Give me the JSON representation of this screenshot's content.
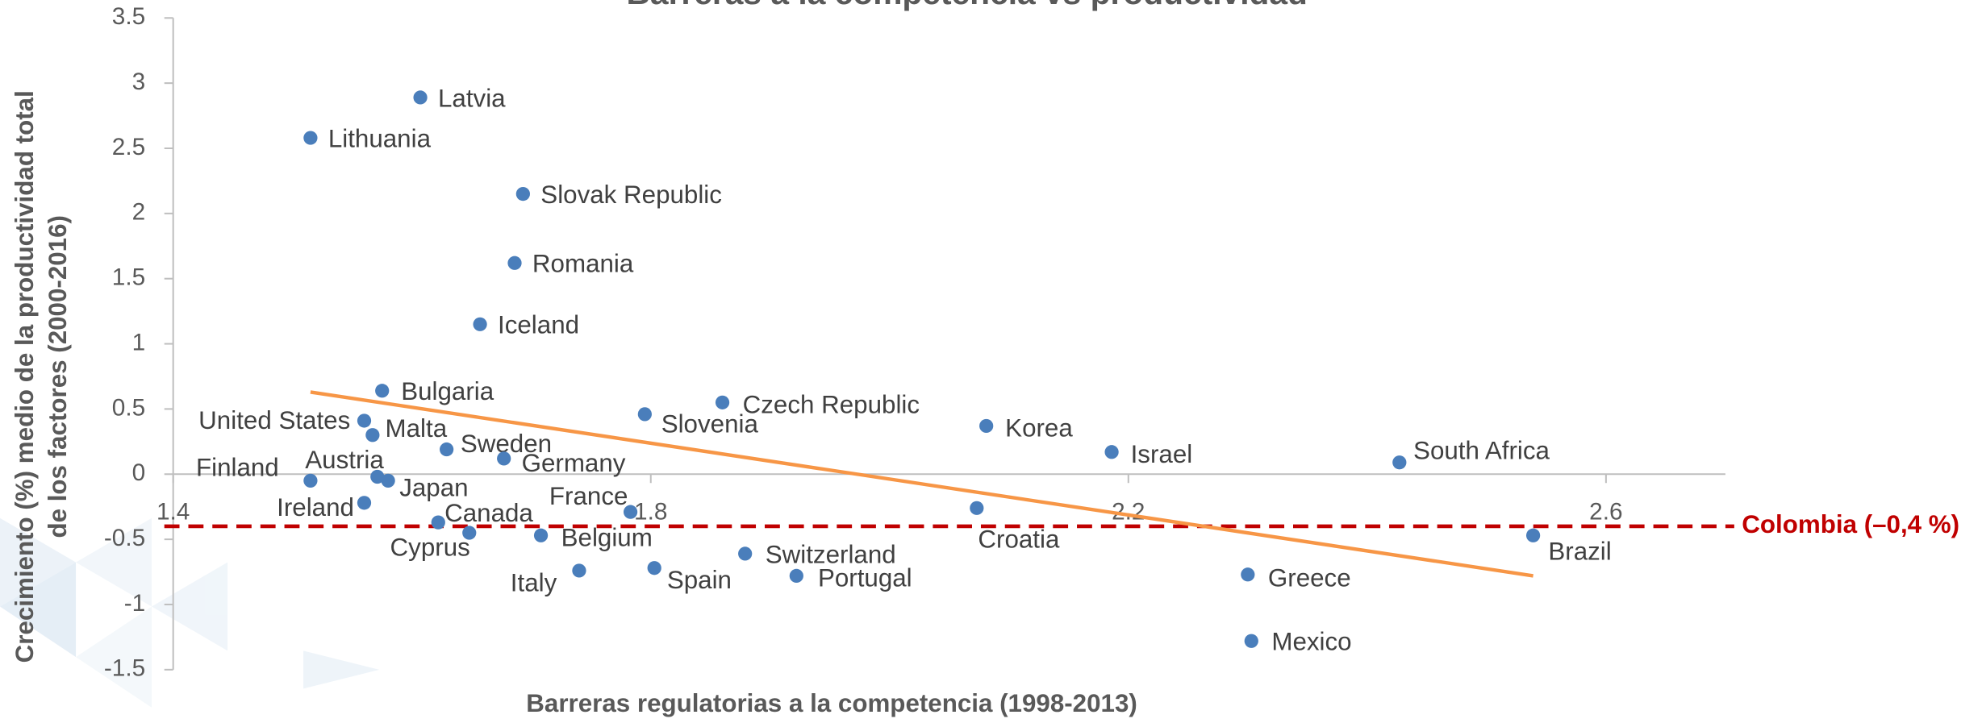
{
  "chart_data": {
    "type": "scatter",
    "title": "Barreras a la competencia vs productividad",
    "x_label": "Barreras regulatorias a la competencia (1998-2013)",
    "y_label": [
      "Crecimiento (%) medio de la productividad total",
      "de los factores (2000-2016)"
    ],
    "labels": [
      "Latvia",
      "Lithuania",
      "Slovak Republic",
      "Romania",
      "Iceland",
      "Bulgaria",
      "United States",
      "Malta",
      "Sweden",
      "Germany",
      "Slovenia",
      "Czech Republic",
      "Korea",
      "Israel",
      "South Africa",
      "Finland",
      "Austria",
      "Japan",
      "Ireland",
      "France",
      "Canada",
      "Cyprus",
      "Belgium",
      "Croatia",
      "Brazil",
      "Switzerland",
      "Italy",
      "Spain",
      "Portugal",
      "Greece",
      "Mexico"
    ],
    "x": [
      1.607,
      1.515,
      1.693,
      1.686,
      1.657,
      1.575,
      1.56,
      1.567,
      1.629,
      1.677,
      1.795,
      1.86,
      2.081,
      2.186,
      2.427,
      1.515,
      1.571,
      1.58,
      1.56,
      1.783,
      1.622,
      1.648,
      1.708,
      2.073,
      2.539,
      1.879,
      1.74,
      1.803,
      1.922,
      2.3,
      2.303
    ],
    "y": [
      2.89,
      2.58,
      2.15,
      1.62,
      1.15,
      0.64,
      0.41,
      0.3,
      0.19,
      0.12,
      0.46,
      0.55,
      0.37,
      0.17,
      0.09,
      -0.05,
      -0.02,
      -0.05,
      -0.22,
      -0.29,
      -0.37,
      -0.45,
      -0.47,
      -0.26,
      -0.47,
      -0.61,
      -0.74,
      -0.72,
      -0.78,
      -0.77,
      -1.28
    ],
    "color": "#4a7ebb",
    "trendline": {
      "x": [
        1.515,
        2.539
      ],
      "y": [
        0.63,
        -0.78
      ],
      "color": "#f79646"
    },
    "reference_line": {
      "value": -0.4,
      "label": "Colombia (–0,4 %)",
      "color": "#c00000"
    },
    "xlim": [
      1.4,
      2.7
    ],
    "ylim": [
      -1.5,
      3.5
    ],
    "xticks": [
      1.4,
      1.8,
      2.2,
      2.6
    ],
    "yticks": [
      3.5,
      3,
      2.5,
      2,
      1.5,
      1,
      0.5,
      0,
      -0.5,
      -1,
      -1.5
    ]
  }
}
